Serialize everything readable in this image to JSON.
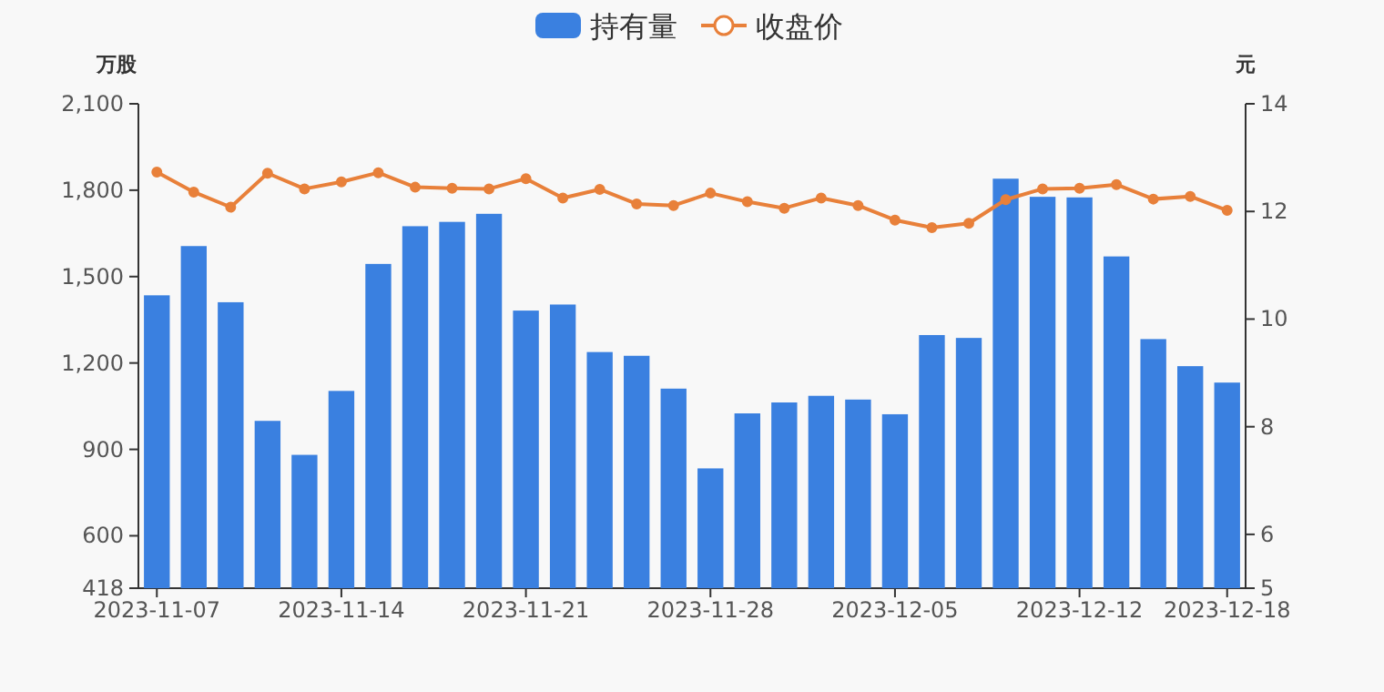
{
  "chart_data": {
    "type": "bar",
    "ylabel": "万股",
    "y2label": "元",
    "categories": [
      "2023-11-07",
      null,
      null,
      null,
      null,
      "2023-11-14",
      null,
      null,
      null,
      null,
      "2023-11-21",
      null,
      null,
      null,
      null,
      "2023-11-28",
      null,
      null,
      null,
      null,
      "2023-12-05",
      null,
      null,
      null,
      null,
      "2023-12-12",
      null,
      null,
      null,
      "2023-12-18"
    ],
    "series": [
      {
        "name": "持有量",
        "color": "#3a80e0",
        "values": [
          1435,
          1606,
          1411,
          999,
          881,
          1103,
          1544,
          1675,
          1690,
          1718,
          1382,
          1403,
          1238,
          1225,
          1111,
          834,
          1025,
          1063,
          1086,
          1073,
          1022,
          1297,
          1287,
          1840,
          1777,
          1775,
          1570,
          1283,
          1189,
          1132
        ]
      },
      {
        "name": "收盘价",
        "type": "line",
        "axis": "y2",
        "color": "#e8803a",
        "marker": "circle",
        "values": [
          12.73,
          12.36,
          12.08,
          12.71,
          12.42,
          12.55,
          12.72,
          12.45,
          12.43,
          12.42,
          12.61,
          12.25,
          12.41,
          12.14,
          12.11,
          12.34,
          12.18,
          12.06,
          12.25,
          12.11,
          11.84,
          11.7,
          11.78,
          12.22,
          12.42,
          12.43,
          12.5,
          12.23,
          12.28,
          12.02
        ]
      }
    ],
    "ylim": [
      418,
      2100
    ],
    "yticks": [
      418,
      600,
      900,
      {
        "value": 1200,
        "label": "1,200"
      },
      {
        "value": 1500,
        "label": "1,500"
      },
      {
        "value": 1800,
        "label": "1,800"
      },
      {
        "value": 2100,
        "label": "2,100"
      }
    ],
    "y2lim": [
      5,
      14
    ],
    "y2ticks": [
      5,
      6,
      8,
      10,
      12,
      14
    ],
    "legend": "top",
    "grid": false
  }
}
